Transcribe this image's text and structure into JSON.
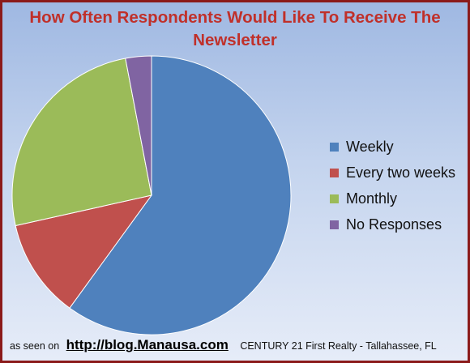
{
  "chart_data": {
    "type": "pie",
    "title": "How Often Respondents Would Like To Receive The Newsletter",
    "slices": [
      {
        "name": "Weekly",
        "value": 60,
        "color": "#4f81bd"
      },
      {
        "name": "Every two weeks",
        "value": 11.5,
        "color": "#c0504d"
      },
      {
        "name": "Monthly",
        "value": 25.5,
        "color": "#9bbb59"
      },
      {
        "name": "No Responses",
        "value": 3,
        "color": "#8064a2"
      }
    ],
    "legend": "right"
  },
  "footer": {
    "prefix": "as seen on",
    "url": "http://blog.Manausa.com",
    "company": "CENTURY 21 First Realty - Tallahassee, FL"
  }
}
